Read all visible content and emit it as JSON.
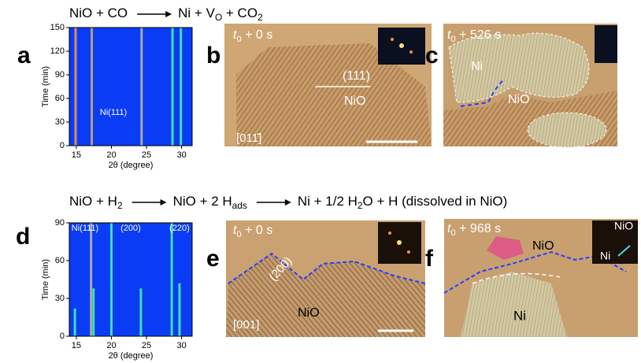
{
  "reactions": [
    {
      "sides": [
        [
          {
            "text": "NiO + CO"
          }
        ],
        [
          {
            "text": "Ni + V"
          },
          {
            "text": "O",
            "sub": true
          },
          {
            "text": " + CO"
          },
          {
            "text": "2",
            "sub": true
          }
        ]
      ]
    },
    {
      "sides": [
        [
          {
            "text": "NiO + H"
          },
          {
            "text": "2",
            "sub": true
          }
        ],
        [
          {
            "text": "NiO + 2 H"
          },
          {
            "text": "ads",
            "sub": true
          }
        ],
        [
          {
            "text": "Ni + 1/2 H"
          },
          {
            "text": "2",
            "sub": true
          },
          {
            "text": "O + H (dissolved in NiO)"
          }
        ]
      ]
    }
  ],
  "panel_labels": [
    "a",
    "b",
    "c",
    "d",
    "e",
    "f"
  ],
  "chart_data": [
    {
      "type": "stripes",
      "xlabel": "2θ (degree)",
      "ylabel": "Time (min)",
      "xlim": [
        14,
        31.5
      ],
      "ylim": [
        0,
        150
      ],
      "xticks": [
        15,
        20,
        25,
        30
      ],
      "yticks": [
        0,
        30,
        60,
        90,
        120,
        150
      ],
      "background": "#0a3cf5",
      "x": [
        14.9,
        17.2,
        24.3,
        28.7,
        29.9
      ],
      "y_top": [
        150,
        150,
        150,
        150,
        150
      ],
      "colors": [
        "#d9905a",
        "#b49a78",
        "#a8a8a8",
        "#3fe0a8",
        "#3fe0a8"
      ],
      "annotations": [
        "Ni(111)"
      ]
    },
    {
      "type": "stripes",
      "xlabel": "2θ (degree)",
      "ylabel": "Time (min)",
      "xlim": [
        14,
        31.5
      ],
      "ylim": [
        0,
        90
      ],
      "xticks": [
        15,
        20,
        25,
        30
      ],
      "yticks": [
        0,
        30,
        60,
        90
      ],
      "background": "#0a3cf5",
      "x": [
        14.8,
        17.1,
        17.45,
        20.0,
        24.2,
        28.6,
        29.7
      ],
      "y_top": [
        22,
        90,
        38,
        90,
        38,
        90,
        42
      ],
      "colors": [
        "#3fe0a8",
        "#a8a8a8",
        "#3fe0a8",
        "#3fe0a8",
        "#3fe0a8",
        "#3fe0a8",
        "#3fe0a8"
      ],
      "annotations": [
        "Ni(111)",
        "(200)",
        "(220)"
      ]
    }
  ],
  "images": [
    {
      "time": [
        {
          "text": "t",
          "italic": true
        },
        {
          "text": "0",
          "sub": true
        },
        {
          "text": " + 0 s"
        }
      ],
      "labels": [
        "(111)",
        "NiO",
        "[011̄]"
      ]
    },
    {
      "time": [
        {
          "text": "t",
          "italic": true
        },
        {
          "text": "0",
          "sub": true
        },
        {
          "text": " + 526 s"
        }
      ],
      "labels": [
        "Ni",
        "NiO"
      ]
    },
    {
      "time": [
        {
          "text": "t",
          "italic": true
        },
        {
          "text": "0",
          "sub": true
        },
        {
          "text": " + 0 s"
        }
      ],
      "labels": [
        "(200)",
        "NiO",
        "[001]"
      ]
    },
    {
      "time": [
        {
          "text": "t",
          "italic": true
        },
        {
          "text": "0",
          "sub": true
        },
        {
          "text": " + 968 s"
        }
      ],
      "labels": [
        "NiO",
        "Ni",
        "NiO",
        "Ni"
      ]
    }
  ]
}
